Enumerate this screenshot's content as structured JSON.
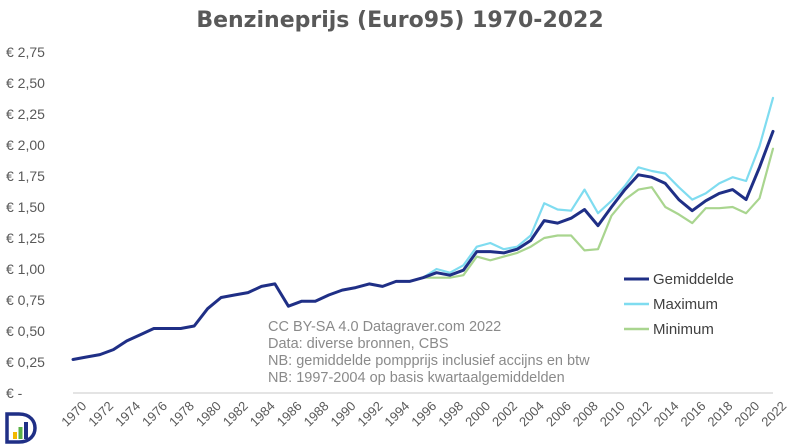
{
  "chart_data": {
    "type": "line",
    "title": "Benzineprijs (Euro95) 1970-2022",
    "xlabel": "",
    "ylabel": "",
    "ylim": [
      0,
      2.75
    ],
    "yticks": [
      0,
      0.25,
      0.5,
      0.75,
      1.0,
      1.25,
      1.5,
      1.75,
      2.0,
      2.25,
      2.5,
      2.75
    ],
    "ytick_labels": [
      "€ -",
      "€ 0,25",
      "€ 0,50",
      "€ 0,75",
      "€ 1,00",
      "€ 1,25",
      "€ 1,50",
      "€ 1,75",
      "€ 2,00",
      "€ 2,25",
      "€ 2,50",
      "€ 2,75"
    ],
    "xlim": [
      1970,
      2022
    ],
    "xticks": [
      1970,
      1972,
      1974,
      1976,
      1978,
      1980,
      1982,
      1984,
      1986,
      1988,
      1990,
      1992,
      1994,
      1996,
      1998,
      2000,
      2002,
      2004,
      2006,
      2008,
      2010,
      2012,
      2014,
      2016,
      2018,
      2020,
      2022
    ],
    "grid": false,
    "legend": "right",
    "series": [
      {
        "name": "Gemiddelde",
        "color": "#1f2f86",
        "points": [
          [
            1970,
            0.27
          ],
          [
            1971,
            0.29
          ],
          [
            1972,
            0.31
          ],
          [
            1973,
            0.35
          ],
          [
            1974,
            0.42
          ],
          [
            1975,
            0.47
          ],
          [
            1976,
            0.52
          ],
          [
            1977,
            0.52
          ],
          [
            1978,
            0.52
          ],
          [
            1979,
            0.54
          ],
          [
            1980,
            0.68
          ],
          [
            1981,
            0.77
          ],
          [
            1982,
            0.79
          ],
          [
            1983,
            0.81
          ],
          [
            1984,
            0.86
          ],
          [
            1985,
            0.88
          ],
          [
            1986,
            0.7
          ],
          [
            1987,
            0.74
          ],
          [
            1988,
            0.74
          ],
          [
            1989,
            0.79
          ],
          [
            1990,
            0.83
          ],
          [
            1991,
            0.85
          ],
          [
            1992,
            0.88
          ],
          [
            1993,
            0.86
          ],
          [
            1994,
            0.9
          ],
          [
            1995,
            0.9
          ],
          [
            1996,
            0.93
          ],
          [
            1997,
            0.97
          ],
          [
            1998,
            0.95
          ],
          [
            1999,
            0.99
          ],
          [
            2000,
            1.14
          ],
          [
            2001,
            1.14
          ],
          [
            2002,
            1.13
          ],
          [
            2003,
            1.16
          ],
          [
            2004,
            1.23
          ],
          [
            2005,
            1.39
          ],
          [
            2006,
            1.37
          ],
          [
            2007,
            1.41
          ],
          [
            2008,
            1.48
          ],
          [
            2009,
            1.35
          ],
          [
            2010,
            1.5
          ],
          [
            2011,
            1.64
          ],
          [
            2012,
            1.76
          ],
          [
            2013,
            1.74
          ],
          [
            2014,
            1.69
          ],
          [
            2015,
            1.56
          ],
          [
            2016,
            1.47
          ],
          [
            2017,
            1.55
          ],
          [
            2018,
            1.61
          ],
          [
            2019,
            1.64
          ],
          [
            2020,
            1.56
          ],
          [
            2021,
            1.82
          ],
          [
            2022,
            2.11
          ]
        ]
      },
      {
        "name": "Maximum",
        "color": "#7fdcf0",
        "points": [
          [
            1996,
            0.93
          ],
          [
            1997,
            1.0
          ],
          [
            1998,
            0.97
          ],
          [
            1999,
            1.03
          ],
          [
            2000,
            1.18
          ],
          [
            2001,
            1.21
          ],
          [
            2002,
            1.16
          ],
          [
            2003,
            1.18
          ],
          [
            2004,
            1.27
          ],
          [
            2005,
            1.53
          ],
          [
            2006,
            1.48
          ],
          [
            2007,
            1.47
          ],
          [
            2008,
            1.64
          ],
          [
            2009,
            1.45
          ],
          [
            2010,
            1.55
          ],
          [
            2011,
            1.67
          ],
          [
            2012,
            1.82
          ],
          [
            2013,
            1.79
          ],
          [
            2014,
            1.77
          ],
          [
            2015,
            1.66
          ],
          [
            2016,
            1.56
          ],
          [
            2017,
            1.61
          ],
          [
            2018,
            1.69
          ],
          [
            2019,
            1.74
          ],
          [
            2020,
            1.71
          ],
          [
            2021,
            1.99
          ],
          [
            2022,
            2.38
          ]
        ]
      },
      {
        "name": "Minimum",
        "color": "#a9d58f",
        "points": [
          [
            1996,
            0.93
          ],
          [
            1997,
            0.93
          ],
          [
            1998,
            0.93
          ],
          [
            1999,
            0.95
          ],
          [
            2000,
            1.1
          ],
          [
            2001,
            1.07
          ],
          [
            2002,
            1.1
          ],
          [
            2003,
            1.13
          ],
          [
            2004,
            1.18
          ],
          [
            2005,
            1.25
          ],
          [
            2006,
            1.27
          ],
          [
            2007,
            1.27
          ],
          [
            2008,
            1.15
          ],
          [
            2009,
            1.16
          ],
          [
            2010,
            1.43
          ],
          [
            2011,
            1.56
          ],
          [
            2012,
            1.64
          ],
          [
            2013,
            1.66
          ],
          [
            2014,
            1.5
          ],
          [
            2015,
            1.44
          ],
          [
            2016,
            1.37
          ],
          [
            2017,
            1.49
          ],
          [
            2018,
            1.49
          ],
          [
            2019,
            1.5
          ],
          [
            2020,
            1.45
          ],
          [
            2021,
            1.57
          ],
          [
            2022,
            1.97
          ]
        ]
      }
    ]
  },
  "notes": [
    "CC BY-SA 4.0 Datagraver.com 2022",
    "Data: diverse bronnen, CBS",
    "NB: gemiddelde pompprijs inclusief accijns en btw",
    "NB: 1997-2004 op basis kwartaalgemiddelden"
  ],
  "logo": {
    "icon": "datagraver-logo-icon",
    "colors": [
      "#1f2f86",
      "#f2b800",
      "#5ab146"
    ]
  }
}
